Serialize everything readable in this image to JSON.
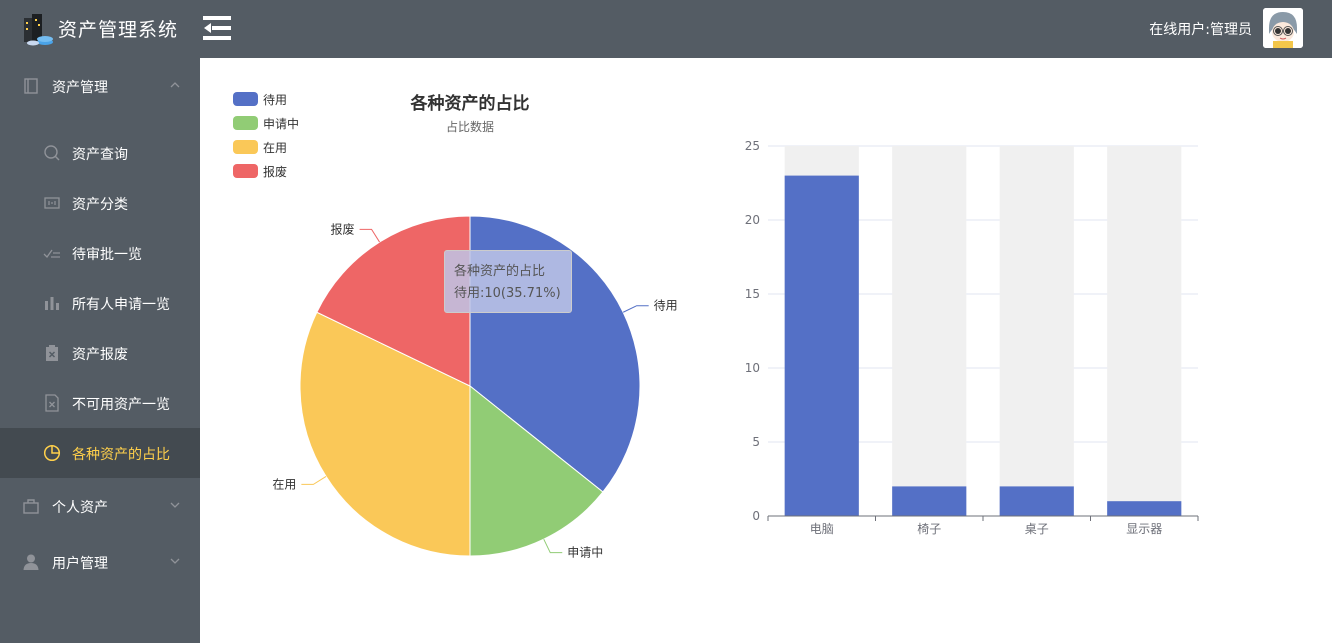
{
  "header": {
    "app_title": "资产管理系统",
    "online_user": "在线用户:管理员"
  },
  "sidebar": {
    "groups": [
      {
        "label": "资产管理",
        "icon": "notebook-icon",
        "expanded": true
      },
      {
        "label": "个人资产",
        "icon": "briefcase-icon",
        "expanded": false
      },
      {
        "label": "用户管理",
        "icon": "user-icon",
        "expanded": false
      }
    ],
    "items": [
      {
        "label": "资产查询",
        "icon": "search-icon"
      },
      {
        "label": "资产分类",
        "icon": "category-icon"
      },
      {
        "label": "待审批一览",
        "icon": "checklist-icon"
      },
      {
        "label": "所有人申请一览",
        "icon": "bar-chart-icon"
      },
      {
        "label": "资产报废",
        "icon": "clipboard-x-icon"
      },
      {
        "label": "不可用资产一览",
        "icon": "document-x-icon"
      },
      {
        "label": "各种资产的占比",
        "icon": "pie-chart-icon",
        "active": true
      }
    ]
  },
  "colors": {
    "sidebar_bg": "#545c64",
    "active_text": "#ffd04b",
    "blue": "#5470c6",
    "green": "#91cc75",
    "yellow": "#fac858",
    "red": "#ee6666"
  },
  "pie_chart": {
    "title": "各种资产的占比",
    "subtitle": "占比数据",
    "tooltip": {
      "title": "各种资产的占比",
      "text": "待用:10(35.71%)"
    },
    "chart_data": {
      "type": "pie",
      "title": "各种资产的占比",
      "subtitle": "占比数据",
      "legend_position": "top-left",
      "slices": [
        {
          "name": "待用",
          "value": 10,
          "color": "#5470c6"
        },
        {
          "name": "申请中",
          "value": 4,
          "color": "#91cc75"
        },
        {
          "name": "在用",
          "value": 9,
          "color": "#fac858"
        },
        {
          "name": "报废",
          "value": 5,
          "color": "#ee6666"
        }
      ]
    }
  },
  "bar_chart": {
    "chart_data": {
      "type": "bar",
      "categories": [
        "电脑",
        "椅子",
        "桌子",
        "显示器"
      ],
      "values": [
        23,
        2,
        2,
        1
      ],
      "background_value": 25,
      "ylim": [
        0,
        25
      ],
      "yticks": [
        "0",
        "5",
        "10",
        "15",
        "20",
        "25"
      ],
      "grid": true,
      "color": "#5470c6"
    }
  }
}
